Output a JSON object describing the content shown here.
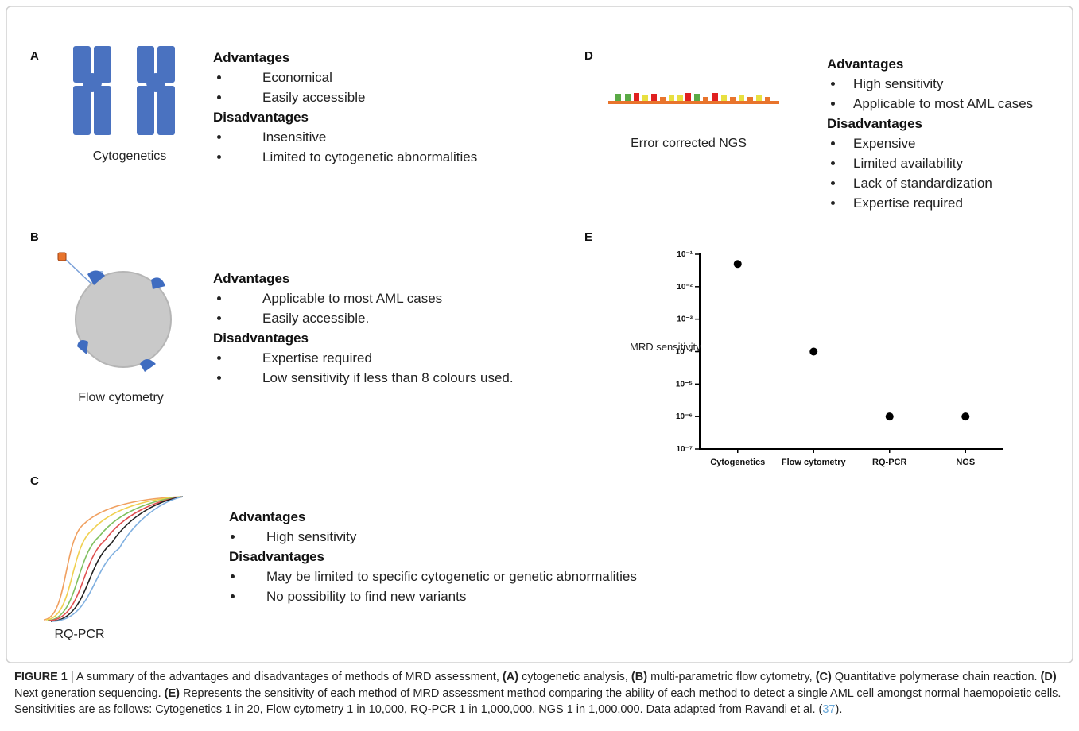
{
  "panels": [
    {
      "label": "A",
      "method": "Cytogenetics",
      "advantages_heading": "Advantages",
      "advantages": [
        "Economical",
        "Easily accessible"
      ],
      "disadvantages_heading": "Disadvantages",
      "disadvantages": [
        "Insensitive",
        "Limited to cytogenetic abnormalities"
      ]
    },
    {
      "label": "B",
      "method": "Flow cytometry",
      "advantages_heading": "Advantages",
      "advantages": [
        "Applicable to most AML cases",
        "Easily accessible."
      ],
      "disadvantages_heading": "Disadvantages",
      "disadvantages": [
        "Expertise required",
        "Low sensitivity if less than 8 colours used."
      ]
    },
    {
      "label": "C",
      "method": "RQ-PCR",
      "advantages_heading": "Advantages",
      "advantages": [
        "High sensitivity"
      ],
      "disadvantages_heading": "Disadvantages",
      "disadvantages": [
        "May be limited to specific cytogenetic or genetic abnormalities",
        "No possibility to find new variants"
      ]
    },
    {
      "label": "D",
      "method": "Error corrected NGS",
      "advantages_heading": "Advantages",
      "advantages": [
        "High sensitivity",
        "Applicable to most AML cases"
      ],
      "disadvantages_heading": "Disadvantages",
      "disadvantages": [
        "Expensive",
        "Limited availability",
        "Lack of standardization",
        "Expertise required"
      ]
    }
  ],
  "panel_e_label": "E",
  "chart_data": {
    "type": "scatter",
    "y_label": "MRD sensitivity",
    "categories": [
      "Cytogenetics",
      "Flow cytometry",
      "RQ-PCR",
      "NGS"
    ],
    "values": [
      0.05,
      0.0001,
      1e-06,
      1e-06
    ],
    "color": "#000000",
    "log_y": true,
    "ylim": [
      1e-07,
      0.1
    ],
    "yticks": [
      {
        "value": 0.1,
        "label": "10⁻¹"
      },
      {
        "value": 0.01,
        "label": "10⁻²"
      },
      {
        "value": 0.001,
        "label": "10⁻³"
      },
      {
        "value": 0.0001,
        "label": "10⁻⁴"
      },
      {
        "value": 1e-05,
        "label": "10⁻⁵"
      },
      {
        "value": 1e-06,
        "label": "10⁻⁶"
      },
      {
        "value": 1e-07,
        "label": "10⁻⁷"
      }
    ]
  },
  "caption": {
    "label": "FIGURE 1",
    "runs": [
      "|",
      "A summary of the advantages and disadvantages of methods of MRD assessment,",
      "(A)",
      "cytogenetic analysis,",
      "(B)",
      "multi-parametric flow cytometry,",
      "(C)",
      "Quantitative polymerase chain reaction.",
      "(D)",
      "Next generation sequencing.",
      "(E)",
      "Represents the sensitivity of each method of MRD assessment method comparing the ability of each method to detect a single AML cell amongst normal haemopoietic cells. Sensitivities are as follows: Cytogenetics 1 in 20, Flow cytometry 1 in 10,000, RQ-PCR 1 in 1,000,000, NGS 1 in 1,000,000. Data adapted from Ravandi et al.",
      "(",
      "37",
      ")."
    ]
  }
}
